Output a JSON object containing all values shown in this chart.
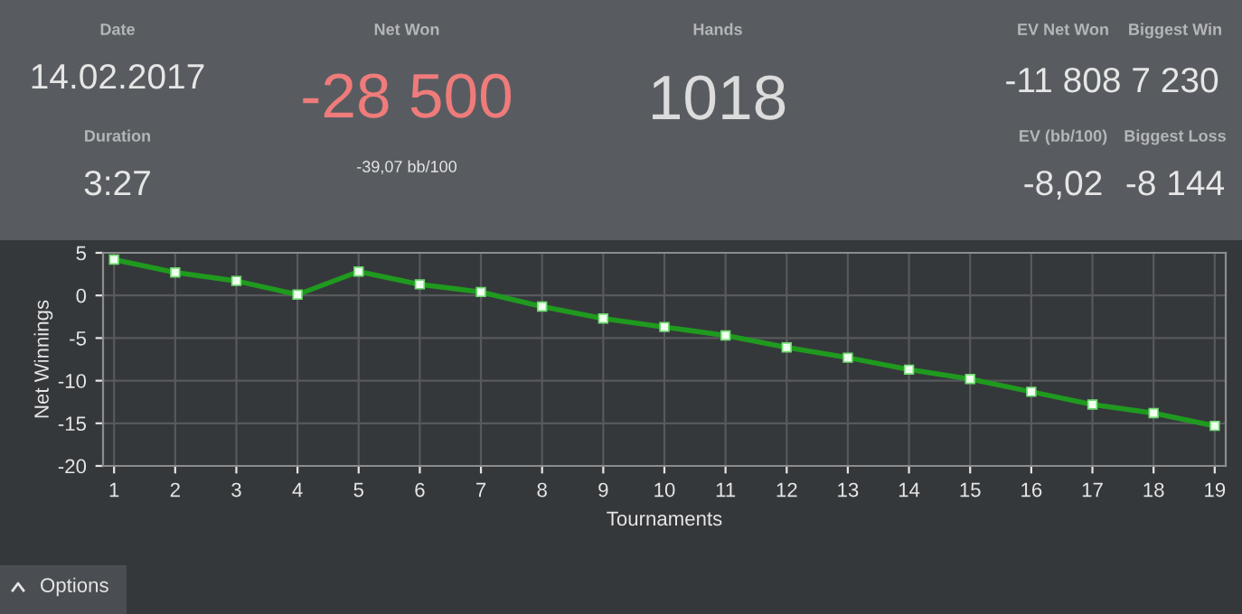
{
  "chart_data": [
    {
      "type": "other",
      "annotations": [
        "Date",
        "14.02.2017",
        "Duration",
        "3:27",
        "Net Won",
        "-28 500",
        "-39,07 bb/100",
        "Hands",
        "1018",
        "EV Net Won",
        "-11 808",
        "Biggest Win",
        "7 230",
        "EV (bb/100)",
        "-8,02",
        "Biggest Loss",
        "-8 144",
        "Options"
      ]
    },
    {
      "type": "line",
      "xlabel": "Tournaments",
      "ylabel": "Net Winnings",
      "x": [
        1,
        2,
        3,
        4,
        5,
        6,
        7,
        8,
        9,
        10,
        11,
        12,
        13,
        14,
        15,
        16,
        17,
        18,
        19
      ],
      "series": [
        {
          "color": "#1f9a1f",
          "values": [
            4.2,
            2.7,
            1.7,
            0.1,
            2.8,
            1.3,
            0.4,
            -1.3,
            -2.7,
            -3.7,
            -4.7,
            -6.1,
            -7.3,
            -8.7,
            -9.8,
            -11.3,
            -12.8,
            -13.8,
            -15.3
          ]
        }
      ],
      "xlim": [
        0.82,
        19.18
      ],
      "xticks": [
        1,
        2,
        3,
        4,
        5,
        6,
        7,
        8,
        9,
        10,
        11,
        12,
        13,
        14,
        15,
        16,
        17,
        18,
        19
      ],
      "ylim": [
        -20,
        5
      ],
      "yticks": [
        -20,
        -15,
        -10,
        -5,
        0,
        5
      ],
      "grid": true,
      "marker": "square",
      "line_style": "solid"
    }
  ]
}
